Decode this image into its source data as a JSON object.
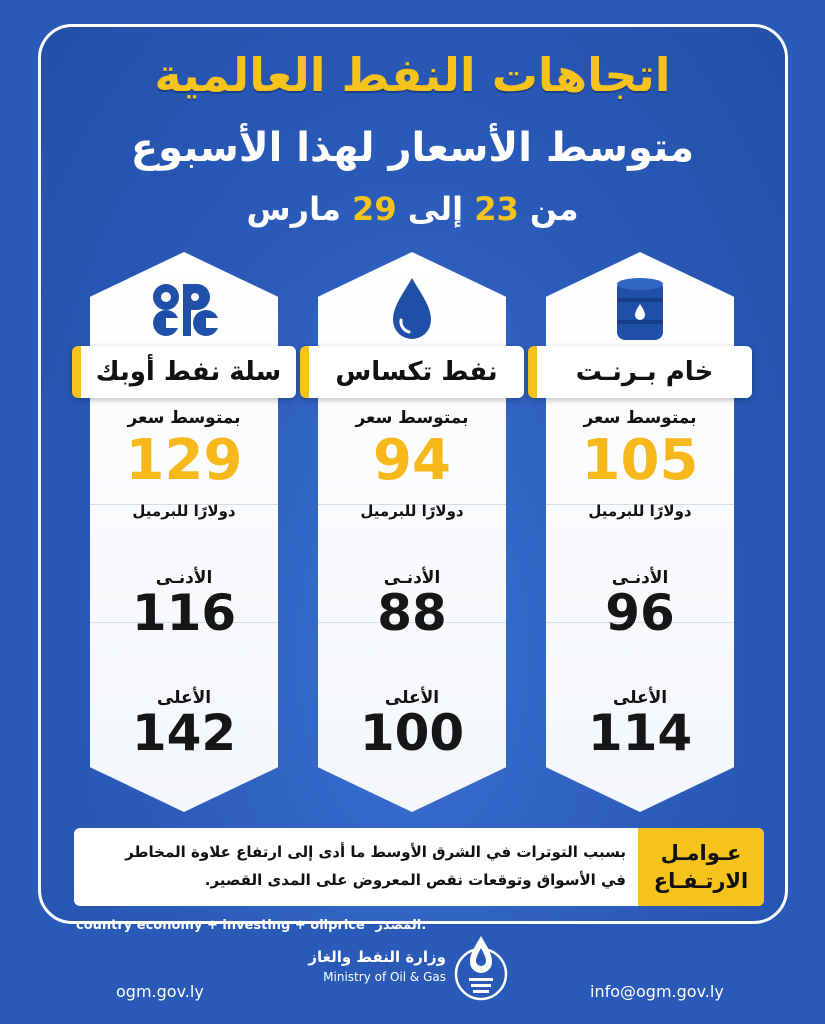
{
  "header": {
    "title": "اتجاهات النفط العالمية",
    "subtitle": "متوسط الأسعار لهذا الأسبوع",
    "date_prefix": "من",
    "date_from": "23",
    "date_mid": "إلى",
    "date_to": "29",
    "date_month": "مارس"
  },
  "columns": [
    {
      "name": "خام بـرنـت",
      "icon": "oil-barrel-icon",
      "avg_label": "بمتوسط سعر",
      "avg_value": "105",
      "unit": "دولارًا للبرميل",
      "min_label": "الأدنـى",
      "min_value": "96",
      "max_label": "الأعلى",
      "max_value": "114"
    },
    {
      "name": "نفط تكساس",
      "icon": "oil-drop-icon",
      "avg_label": "بمتوسط سعر",
      "avg_value": "94",
      "unit": "دولارًا للبرميل",
      "min_label": "الأدنـى",
      "min_value": "88",
      "max_label": "الأعلى",
      "max_value": "100"
    },
    {
      "name": "سلة نفط أوبك",
      "icon": "opec-logo-icon",
      "avg_label": "بمتوسط سعر",
      "avg_value": "129",
      "unit": "دولارًا للبرميل",
      "min_label": "الأدنـى",
      "min_value": "116",
      "max_label": "الأعلى",
      "max_value": "142"
    }
  ],
  "factors": {
    "tag_line1": "عـوامـل",
    "tag_line2": "الارتـفـاع",
    "text_line1": "بسبب التوترات في الشرق الأوسط ما أدى إلى ارتفاع علاوة المخاطر",
    "text_line2": "في الأسواق وتوقعات نقص المعروض على المدى القصير."
  },
  "source": {
    "label": "المصدر:",
    "value": "country economy + investing + oilprice"
  },
  "footer": {
    "website": "ogm.gov.ly",
    "email": "info@ogm.gov.ly",
    "ministry_ar": "وزارة النفط والغاز",
    "ministry_en": "Ministry of Oil & Gas"
  },
  "colors": {
    "background": "#2a5ab8",
    "accent": "#f6c21c",
    "card": "#ffffff"
  }
}
